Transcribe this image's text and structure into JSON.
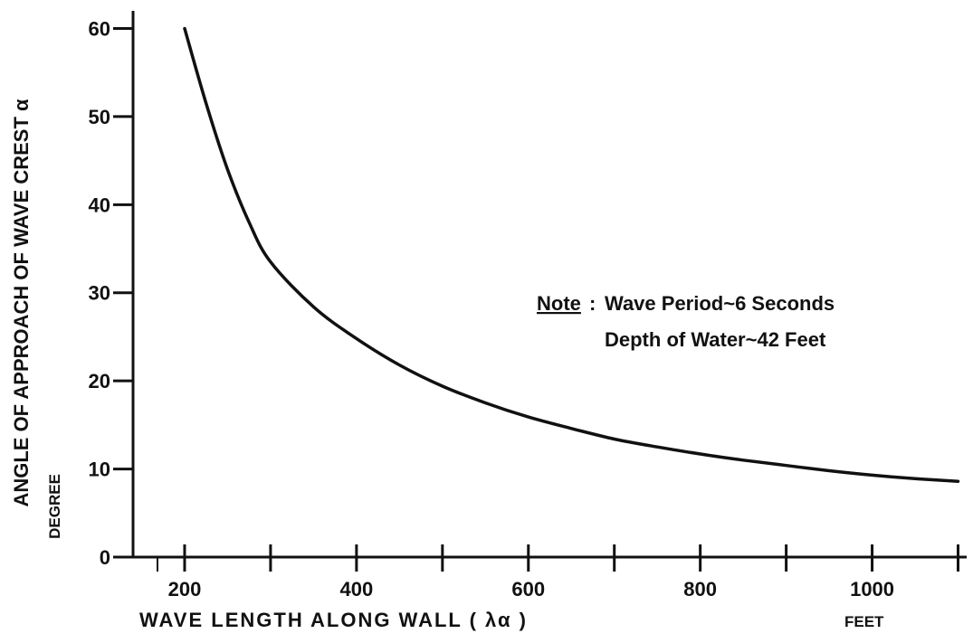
{
  "chart_data": {
    "type": "line",
    "title": "",
    "xlabel": "WAVE LENGTH ALONG WALL ( λα )",
    "xunit": "FEET",
    "ylabel": "ANGLE OF APPROACH OF WAVE CREST α",
    "yunit": "DEGREE",
    "xlim": [
      140,
      1110
    ],
    "ylim": [
      0,
      62
    ],
    "x_ticks": [
      200,
      300,
      400,
      500,
      600,
      700,
      800,
      900,
      1000,
      1100
    ],
    "x_tick_labels": [
      "200",
      "",
      "400",
      "",
      "600",
      "",
      "800",
      "",
      "1000",
      ""
    ],
    "y_ticks": [
      0,
      10,
      20,
      30,
      40,
      50,
      60
    ],
    "y_tick_labels": [
      "0",
      "10",
      "20",
      "30",
      "40",
      "50",
      "60"
    ],
    "grid": false,
    "legend": "none",
    "series": [
      {
        "x": [
          200,
          225,
          250,
          275,
          300,
          350,
          400,
          450,
          500,
          550,
          600,
          650,
          700,
          750,
          800,
          850,
          900,
          950,
          1000,
          1050,
          1100
        ],
        "y": [
          60,
          51.5,
          44,
          38,
          33.5,
          28.4,
          24.8,
          21.8,
          19.4,
          17.5,
          15.9,
          14.6,
          13.4,
          12.5,
          11.7,
          11.0,
          10.4,
          9.8,
          9.3,
          8.9,
          8.6
        ]
      }
    ],
    "annotation": {
      "label": "Note",
      "colon": ":",
      "line1": "Wave Period~6 Seconds",
      "line2": "Depth of Water~42 Feet"
    },
    "line_color": "#111111"
  }
}
